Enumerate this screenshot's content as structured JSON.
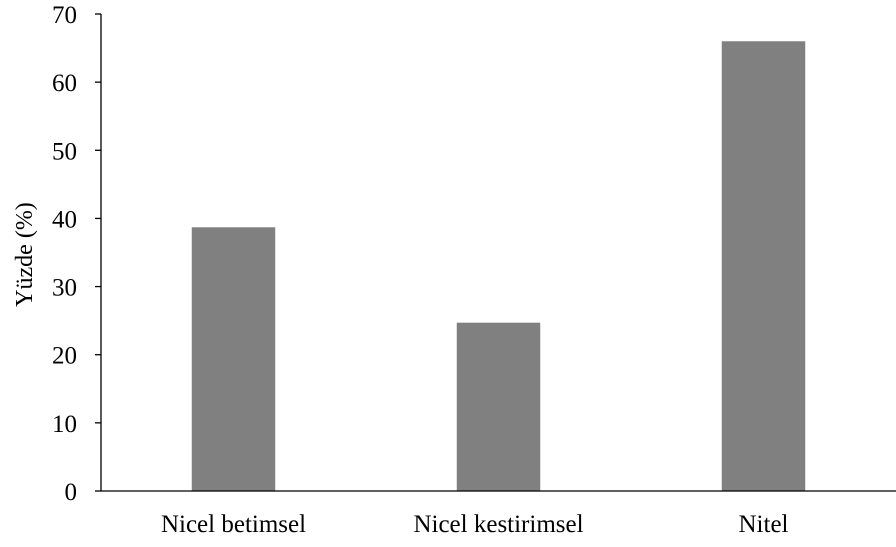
{
  "chart_data": {
    "type": "bar",
    "title": "",
    "xlabel": "",
    "ylabel": "Yüzde (%)",
    "categories": [
      "Nicel betimsel",
      "Nicel kestirimsel",
      "Nitel"
    ],
    "values": [
      38.7,
      24.7,
      66.0
    ],
    "ylim": [
      0,
      70
    ],
    "yticks": [
      0,
      10,
      20,
      30,
      40,
      50,
      60,
      70
    ],
    "ytick_labels": [
      "0",
      "10",
      "20",
      "30",
      "40",
      "50",
      "60",
      "70"
    ],
    "grid": false,
    "legend": "none",
    "bar_color": "#808080",
    "axis_color": "#000000"
  }
}
